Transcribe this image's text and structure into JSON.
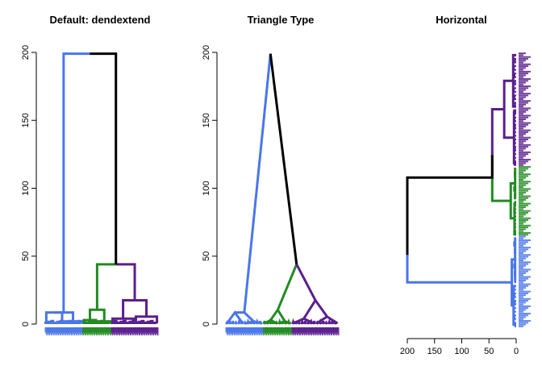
{
  "colors": {
    "blue": "#4a76ea",
    "green": "#228b22",
    "purple": "#5a1f8e",
    "root": "#000000"
  },
  "chart_data": [
    {
      "type": "dendrogram",
      "title": "Default: dendextend",
      "orientation": "vertical",
      "branch_style": "rectangle",
      "ylim": [
        0,
        200
      ],
      "yticks": [
        0,
        50,
        100,
        150,
        200
      ]
    },
    {
      "type": "dendrogram",
      "title": "Triangle Type",
      "orientation": "vertical",
      "branch_style": "triangle",
      "ylim": [
        0,
        200
      ],
      "yticks": [
        0,
        50,
        100,
        150,
        200
      ]
    },
    {
      "type": "dendrogram",
      "title": "Horizontal",
      "orientation": "horizontal",
      "branch_style": "rectangle",
      "xlim": [
        200,
        0
      ],
      "xticks": [
        200,
        150,
        100,
        50,
        0
      ]
    }
  ],
  "tree": {
    "root_height": 199,
    "clusters": [
      {
        "name": "blue",
        "leaves": 50,
        "height": 8.5,
        "sub": [
          [
            0,
            24,
            8.5
          ]
        ]
      },
      {
        "name": "green",
        "leaves": 38,
        "height": 10.5,
        "sub": [
          [
            0,
            19,
            3
          ],
          [
            19,
            38,
            2
          ]
        ]
      },
      {
        "name": "purple",
        "leaves": 62,
        "height": 17.5,
        "sub": [
          [
            0,
            31,
            4
          ],
          [
            31,
            62,
            5.5
          ]
        ]
      }
    ],
    "green_purple_height": 44,
    "horizontal_heights": {
      "root": 116,
      "green_purple": 44,
      "blue": 8,
      "green": 10,
      "purple": 22
    }
  }
}
